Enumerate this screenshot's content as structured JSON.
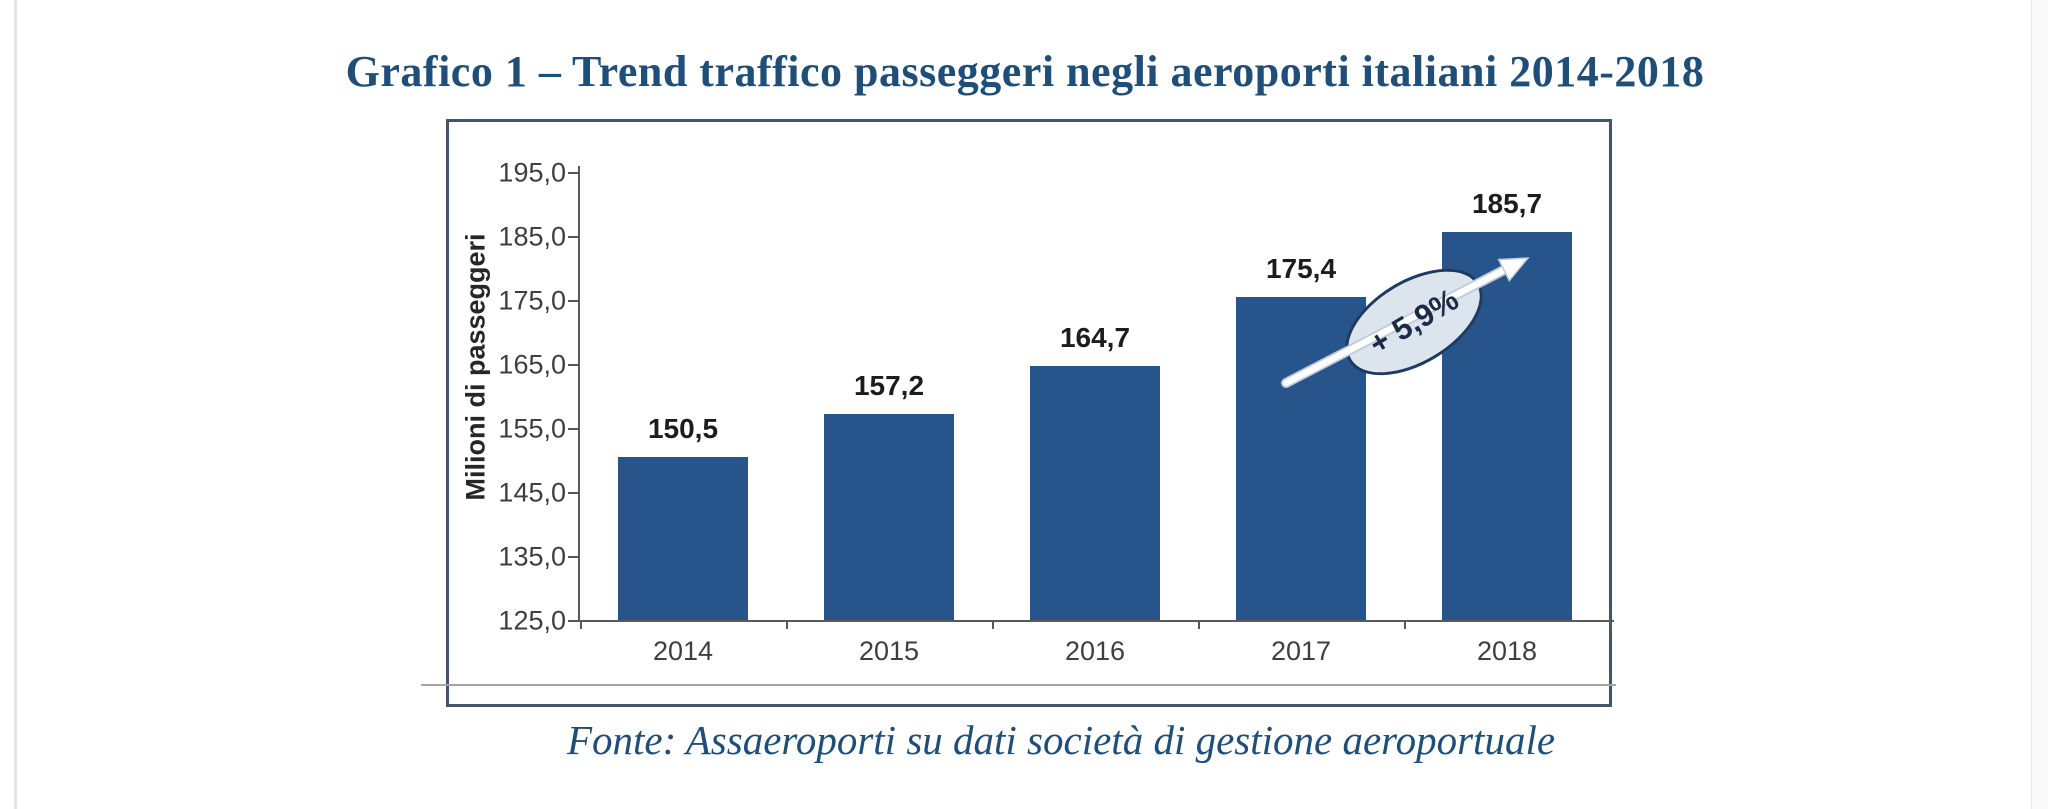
{
  "page": {
    "title": "Grafico 1 – Trend traffico passeggeri negli aeroporti italiani 2014-2018",
    "source_note": "Fonte: Assaeroporti su dati società di gestione aeroportuale"
  },
  "chart_data": {
    "type": "bar",
    "title": "Grafico 1 – Trend traffico passeggeri negli aeroporti italiani 2014-2018",
    "categories": [
      "2014",
      "2015",
      "2016",
      "2017",
      "2018"
    ],
    "values": [
      150.5,
      157.2,
      164.7,
      175.4,
      185.7
    ],
    "value_labels": [
      "150,5",
      "157,2",
      "164,7",
      "175,4",
      "185,7"
    ],
    "xlabel": "",
    "ylabel": "Milioni di passeggeri",
    "ylim": [
      125,
      195
    ],
    "ytick_step": 10,
    "ytick_labels": [
      "125,0",
      "135,0",
      "145,0",
      "155,0",
      "165,0",
      "175,0",
      "185,0",
      "195,0"
    ],
    "grid": false,
    "legend": null,
    "annotation": {
      "text": "+ 5,9%",
      "between_categories": [
        "2017",
        "2018"
      ],
      "shape": "ellipse-with-arrow"
    },
    "colors": {
      "bar": "#27558b",
      "axis": "#595959",
      "tick_label": "#3f3f3f",
      "value_label": "#1c1c1c",
      "title": "#1f4e79",
      "source": "#1f4e79",
      "box_border": "#44546b",
      "ellipse_fill": "#dce4ee",
      "ellipse_border": "#1f3a61",
      "annotation_text": "#1b2a45",
      "arrow": "#ffffff"
    }
  }
}
